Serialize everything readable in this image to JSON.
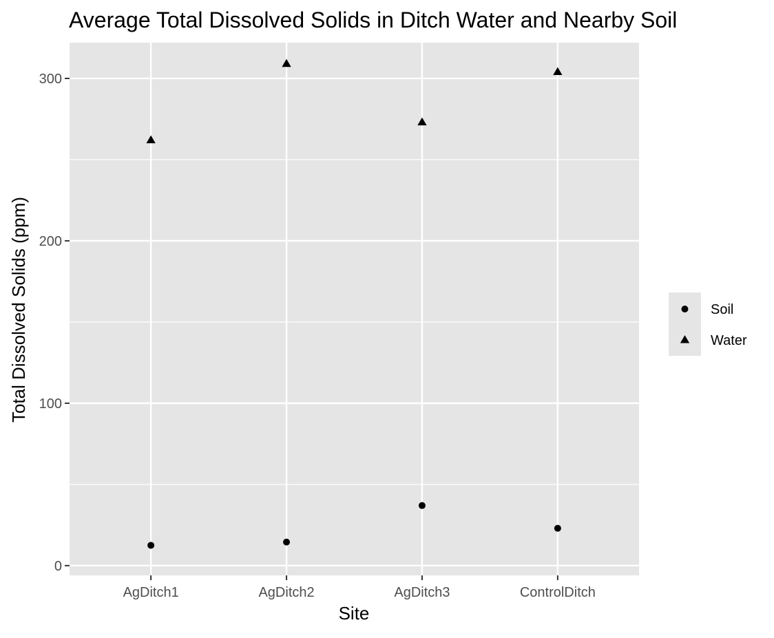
{
  "chart_data": {
    "type": "scatter",
    "title": "Average Total Dissolved Solids in Ditch Water and Nearby Soil",
    "xlabel": "Site",
    "ylabel": "Total Dissolved Solids (ppm)",
    "categories": [
      "AgDitch1",
      "AgDitch2",
      "AgDitch3",
      "ControlDitch"
    ],
    "ylim": [
      -6,
      322
    ],
    "yticks": [
      0,
      100,
      200,
      300
    ],
    "grid": true,
    "legend_position": "right",
    "series": [
      {
        "name": "Soil",
        "marker": "circle",
        "color": "#000000",
        "values": [
          12.5,
          14.5,
          37,
          23
        ]
      },
      {
        "name": "Water",
        "marker": "triangle",
        "color": "#000000",
        "values": [
          262,
          309,
          273,
          304
        ]
      }
    ],
    "colors": {
      "panel_background": "#e5e5e5",
      "grid_line": "#ffffff",
      "axis_text": "#4d4d4d",
      "tick_mark": "#333333",
      "legend_background": "#e5e5e5"
    }
  }
}
